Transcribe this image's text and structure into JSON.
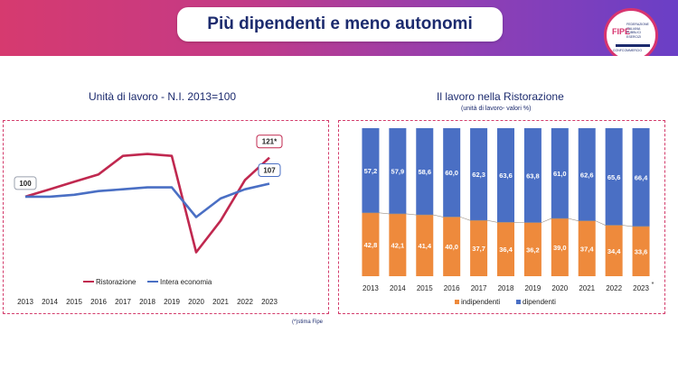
{
  "header": {
    "title": "Più dipendenti e meno autonomi"
  },
  "logo": {
    "name": "FIPE",
    "subtitle": [
      "FEDERAZIONE",
      "ITALIANA",
      "PUBBLICI",
      "ESERCIZI"
    ],
    "tagline": "CONFCOMMERCIO"
  },
  "colors": {
    "red": "#c0284f",
    "blue": "#4a6fc4",
    "orange": "#ee8a3c",
    "navy": "#1c2b6e"
  },
  "footnote": "(*)stima Fipe",
  "chart_data": [
    {
      "type": "line",
      "title": "Unità di lavoro - N.I. 2013=100",
      "x": [
        "2013",
        "2014",
        "2015",
        "2016",
        "2017",
        "2018",
        "2019",
        "2020",
        "2021",
        "2022",
        "2023"
      ],
      "ylim": [
        60,
        135
      ],
      "series": [
        {
          "name": "Ristorazione",
          "color": "#c0284f",
          "values": [
            100,
            104,
            108,
            112,
            122,
            123,
            122,
            70,
            87,
            109,
            121
          ]
        },
        {
          "name": "Intera economia",
          "color": "#4a6fc4",
          "values": [
            100,
            100,
            101,
            103,
            104,
            105,
            105,
            89,
            99,
            104,
            107
          ]
        }
      ],
      "annotations": [
        {
          "label": "100",
          "series": 0,
          "index": 0
        },
        {
          "label": "121*",
          "series": 0,
          "index": 10
        },
        {
          "label": "107",
          "series": 1,
          "index": 10
        }
      ],
      "legend": "bottom"
    },
    {
      "type": "bar",
      "stacked": true,
      "title": "Il lavoro nella Ristorazione",
      "subtitle": "(unità di lavoro- valori %)",
      "categories": [
        "2013",
        "2014",
        "2015",
        "2016",
        "2017",
        "2018",
        "2019",
        "2020",
        "2021",
        "2022",
        "2023"
      ],
      "category_marks": [
        "",
        "",
        "",
        "",
        "",
        "",
        "",
        "",
        "",
        "",
        "*"
      ],
      "series": [
        {
          "name": "indipendenti",
          "color": "#ee8a3c",
          "values": [
            "42,8",
            "42,1",
            "41,4",
            "40,0",
            "37,7",
            "36,4",
            "36,2",
            "39,0",
            "37,4",
            "34,4",
            "33,6"
          ]
        },
        {
          "name": "dipendenti",
          "color": "#4a6fc4",
          "values": [
            "57,2",
            "57,9",
            "58,6",
            "60,0",
            "62,3",
            "63,6",
            "63,8",
            "61,0",
            "62,6",
            "65,6",
            "66,4"
          ]
        }
      ],
      "ylim": [
        0,
        100
      ],
      "legend": "bottom"
    }
  ]
}
